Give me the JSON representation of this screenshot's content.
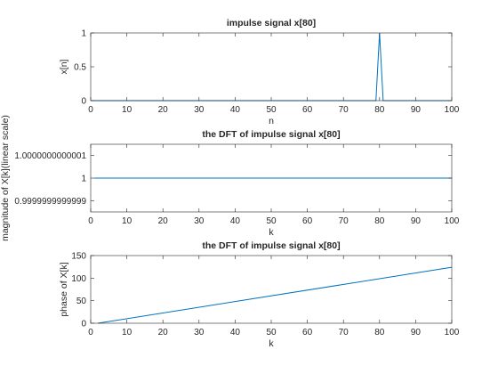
{
  "window": {
    "background": "#ffffff"
  },
  "colors": {
    "line": "#0072BD",
    "axis": "#262626",
    "text": "#262626"
  },
  "chart_data": [
    {
      "type": "line",
      "title": "impulse signal x[80]",
      "xlabel": "n",
      "ylabel": "x[n]",
      "xlim": [
        0,
        100
      ],
      "ylim": [
        0,
        1
      ],
      "xticks": [
        0,
        10,
        20,
        30,
        40,
        50,
        60,
        70,
        80,
        90,
        100
      ],
      "xtick_labels": [
        "0",
        "10",
        "20",
        "30",
        "40",
        "50",
        "60",
        "70",
        "80",
        "90",
        "100"
      ],
      "yticks": [
        0,
        0.5,
        1
      ],
      "ytick_labels": [
        "0",
        "0.5",
        "1"
      ],
      "grid": false,
      "series": [
        {
          "x": [
            0,
            79,
            80,
            81,
            100
          ],
          "y": [
            0,
            0,
            1,
            0,
            0
          ]
        }
      ]
    },
    {
      "type": "line",
      "title": "the DFT of impulse signal x[80]",
      "xlabel": "k",
      "ylabel": "magnitude of X[k](linear scale)",
      "xlim": [
        0,
        100
      ],
      "ylim": [
        0.99999999999985,
        1.00000000000015
      ],
      "xticks": [
        0,
        10,
        20,
        30,
        40,
        50,
        60,
        70,
        80,
        90,
        100
      ],
      "xtick_labels": [
        "0",
        "10",
        "20",
        "30",
        "40",
        "50",
        "60",
        "70",
        "80",
        "90",
        "100"
      ],
      "yticks": [
        0.9999999999999,
        1,
        1.0000000000001
      ],
      "ytick_labels": [
        "0.9999999999999",
        "1",
        "1.0000000000001"
      ],
      "grid": false,
      "series": [
        {
          "x": [
            1,
            100
          ],
          "y": [
            1,
            1
          ]
        }
      ]
    },
    {
      "type": "line",
      "title": "the DFT of impulse signal x[80]",
      "xlabel": "k",
      "ylabel": "phase of X[k]",
      "xlim": [
        0,
        100
      ],
      "ylim": [
        0,
        150
      ],
      "xticks": [
        0,
        10,
        20,
        30,
        40,
        50,
        60,
        70,
        80,
        90,
        100
      ],
      "xtick_labels": [
        "0",
        "10",
        "20",
        "30",
        "40",
        "50",
        "60",
        "70",
        "80",
        "90",
        "100"
      ],
      "yticks": [
        0,
        50,
        100,
        150
      ],
      "ytick_labels": [
        "0",
        "50",
        "100",
        "150"
      ],
      "grid": false,
      "series": [
        {
          "x": [
            2,
            100
          ],
          "y": [
            0,
            124
          ]
        }
      ]
    }
  ]
}
